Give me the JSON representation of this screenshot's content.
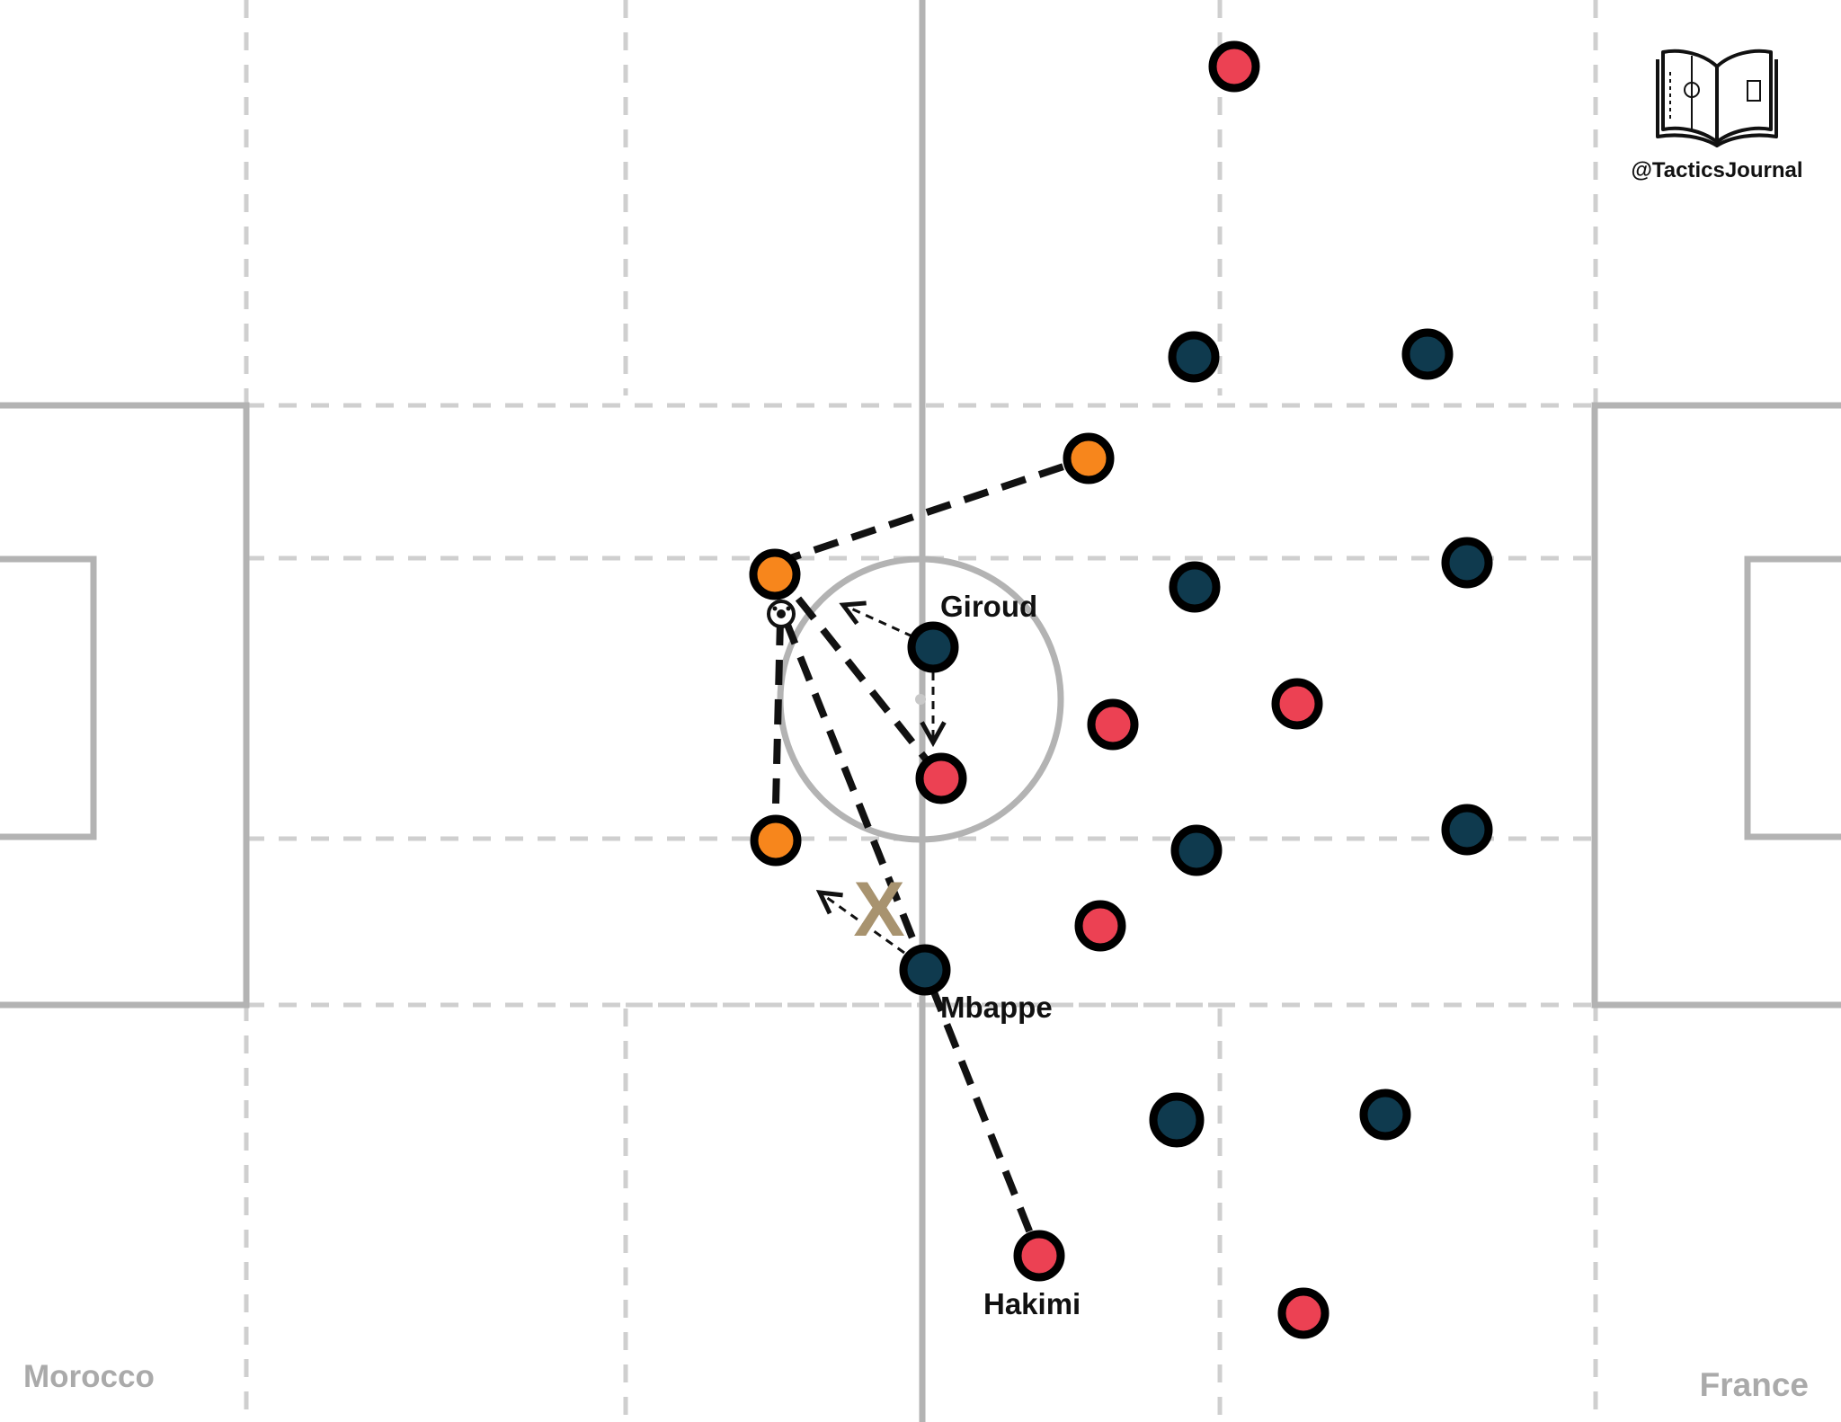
{
  "brand": {
    "handle": "@TacticsJournal",
    "logo": "open-book-pitch-icon"
  },
  "teams": {
    "left": "Morocco",
    "right": "France"
  },
  "colors": {
    "background": "#ffffff",
    "pitch_lines": "#b3b3b3",
    "zone_lines": "#cfcfcf",
    "morocco_orange": "#f7861c",
    "morocco_red": "#ec4153",
    "france_navy": "#0f3a4e",
    "blocked_x": "#a8936f",
    "label_text": "#111111",
    "team_text": "#aaaaaa"
  },
  "player_labels": {
    "giroud": "Giroud",
    "mbappe": "Mbappe",
    "hakimi": "Hakimi"
  },
  "annotations": {
    "blocked_marker": "X"
  }
}
